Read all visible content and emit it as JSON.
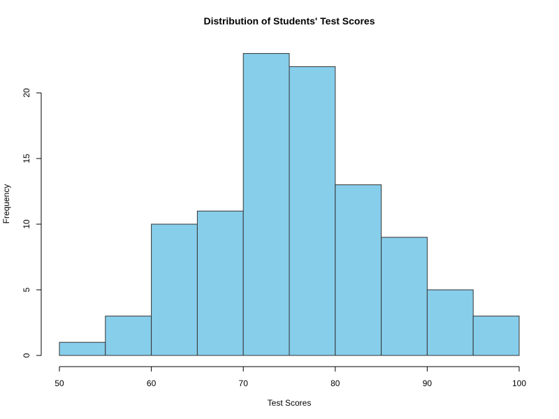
{
  "chart_data": {
    "type": "bar",
    "title": "Distribution of Students' Test Scores",
    "xlabel": "Test Scores",
    "ylabel": "Frequency",
    "bins": [
      {
        "start": 50,
        "end": 55,
        "count": 1
      },
      {
        "start": 55,
        "end": 60,
        "count": 3
      },
      {
        "start": 60,
        "end": 65,
        "count": 10
      },
      {
        "start": 65,
        "end": 70,
        "count": 11
      },
      {
        "start": 70,
        "end": 75,
        "count": 23
      },
      {
        "start": 75,
        "end": 80,
        "count": 22
      },
      {
        "start": 80,
        "end": 85,
        "count": 13
      },
      {
        "start": 85,
        "end": 90,
        "count": 9
      },
      {
        "start": 90,
        "end": 95,
        "count": 5
      },
      {
        "start": 95,
        "end": 100,
        "count": 3
      }
    ],
    "xlim": [
      50,
      100
    ],
    "ylim": [
      0,
      23
    ],
    "x_ticks": [
      "50",
      "60",
      "70",
      "80",
      "90",
      "100"
    ],
    "y_ticks": [
      "0",
      "5",
      "10",
      "15",
      "20"
    ],
    "grid": false,
    "legend": "none",
    "colors": {
      "bar_fill": "#87ceeb",
      "bar_edge": "#333333"
    }
  }
}
